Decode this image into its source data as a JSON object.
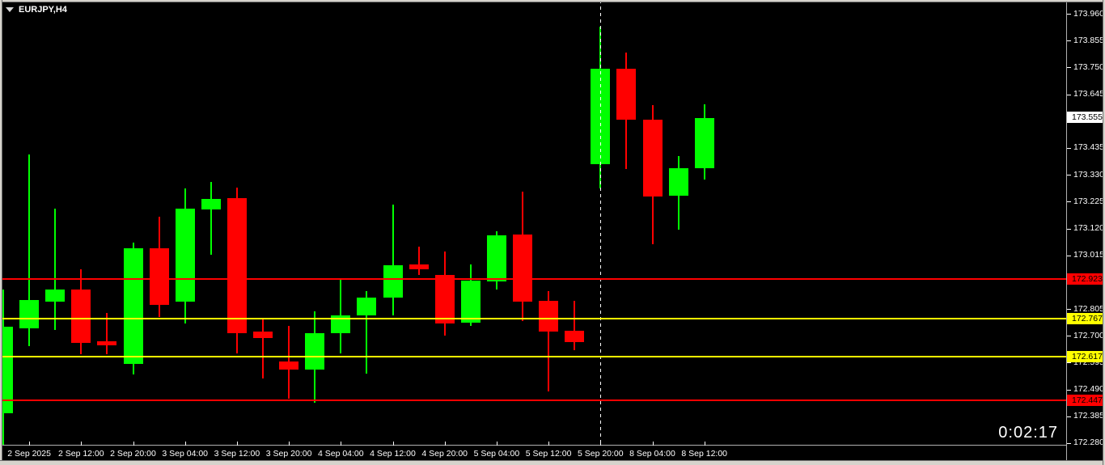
{
  "window": {
    "symbol_label": "EURJPY,H4",
    "countdown_timer": "0:02:17"
  },
  "colors": {
    "background": "#000000",
    "bull_candle": "#00ff00",
    "bear_candle": "#ff0000",
    "resistance_line": "#ff0000",
    "pivot_line": "#ffff00",
    "separator_line": "#ffffff",
    "axis_text": "#ffffff",
    "frame": "#d6d3cc"
  },
  "chart_data": {
    "type": "candlestick",
    "symbol": "EURJPY",
    "timeframe": "H4",
    "title": "EURJPY,H4",
    "price_axis": {
      "side": "right",
      "max": 174.014,
      "min": 172.264,
      "tick_step": 0.105,
      "ticks": [
        "173.960",
        "173.855",
        "173.750",
        "173.645",
        "173.540",
        "173.435",
        "173.330",
        "173.225",
        "173.120",
        "173.015",
        "172.910",
        "172.805",
        "172.700",
        "172.595",
        "172.490",
        "172.385",
        "172.280"
      ]
    },
    "time_axis": {
      "labels": [
        "2 Sep 2025",
        "2 Sep 12:00",
        "2 Sep 20:00",
        "3 Sep 04:00",
        "3 Sep 12:00",
        "3 Sep 20:00",
        "4 Sep 04:00",
        "4 Sep 12:00",
        "4 Sep 20:00",
        "5 Sep 04:00",
        "5 Sep 12:00",
        "5 Sep 20:00",
        "8 Sep 04:00",
        "8 Sep 12:00"
      ],
      "label_every_n_bars": 2,
      "first_label_bar": 2
    },
    "bars": [
      {
        "o": 172.397,
        "h": 172.881,
        "l": 172.274,
        "c": 172.736
      },
      {
        "o": 172.729,
        "h": 173.41,
        "l": 172.66,
        "c": 172.84
      },
      {
        "o": 172.834,
        "h": 173.198,
        "l": 172.723,
        "c": 172.881
      },
      {
        "o": 172.881,
        "h": 172.96,
        "l": 172.628,
        "c": 172.672
      },
      {
        "o": 172.679,
        "h": 172.79,
        "l": 172.628,
        "c": 172.663
      },
      {
        "o": 172.59,
        "h": 173.065,
        "l": 172.549,
        "c": 173.043
      },
      {
        "o": 173.043,
        "h": 173.166,
        "l": 172.774,
        "c": 172.821
      },
      {
        "o": 172.834,
        "h": 173.277,
        "l": 172.748,
        "c": 173.198
      },
      {
        "o": 173.195,
        "h": 173.302,
        "l": 173.017,
        "c": 173.236
      },
      {
        "o": 173.239,
        "h": 173.28,
        "l": 172.631,
        "c": 172.71
      },
      {
        "o": 172.717,
        "h": 172.771,
        "l": 172.533,
        "c": 172.691
      },
      {
        "o": 172.6,
        "h": 172.739,
        "l": 172.454,
        "c": 172.568
      },
      {
        "o": 172.568,
        "h": 172.796,
        "l": 172.438,
        "c": 172.71
      },
      {
        "o": 172.71,
        "h": 172.922,
        "l": 172.631,
        "c": 172.78
      },
      {
        "o": 172.78,
        "h": 172.875,
        "l": 172.552,
        "c": 172.85
      },
      {
        "o": 172.85,
        "h": 173.214,
        "l": 172.78,
        "c": 172.976
      },
      {
        "o": 172.979,
        "h": 173.049,
        "l": 172.938,
        "c": 172.96
      },
      {
        "o": 172.938,
        "h": 173.03,
        "l": 172.701,
        "c": 172.748
      },
      {
        "o": 172.752,
        "h": 172.979,
        "l": 172.739,
        "c": 172.916
      },
      {
        "o": 172.913,
        "h": 173.109,
        "l": 172.881,
        "c": 173.093
      },
      {
        "o": 173.097,
        "h": 173.264,
        "l": 172.758,
        "c": 172.834
      },
      {
        "o": 172.837,
        "h": 172.875,
        "l": 172.483,
        "c": 172.717
      },
      {
        "o": 172.72,
        "h": 172.837,
        "l": 172.644,
        "c": 172.676
      },
      {
        "o": 173.372,
        "h": 173.91,
        "l": 173.277,
        "c": 173.745
      },
      {
        "o": 173.745,
        "h": 173.808,
        "l": 173.353,
        "c": 173.546
      },
      {
        "o": 173.546,
        "h": 173.603,
        "l": 173.059,
        "c": 173.245
      },
      {
        "o": 173.248,
        "h": 173.403,
        "l": 173.116,
        "c": 173.356
      },
      {
        "o": 173.356,
        "h": 173.606,
        "l": 173.312,
        "c": 173.552
      }
    ],
    "horizontal_lines": [
      {
        "price": 172.923,
        "label": "172.923",
        "color": "#ff0000"
      },
      {
        "price": 172.767,
        "label": "172.767",
        "color": "#ffff00"
      },
      {
        "price": 172.617,
        "label": "172.617",
        "color": "#ffff00"
      },
      {
        "price": 172.447,
        "label": "172.447",
        "color": "#ff0000"
      }
    ],
    "vertical_separator": {
      "bar": 24,
      "color": "#ffffff",
      "style": "dashed"
    },
    "current_price": {
      "label": "173.555",
      "price": 173.555,
      "tag_bg": "#ffffff",
      "tag_text": "#000000"
    },
    "legend_position": "none",
    "grid": false
  }
}
